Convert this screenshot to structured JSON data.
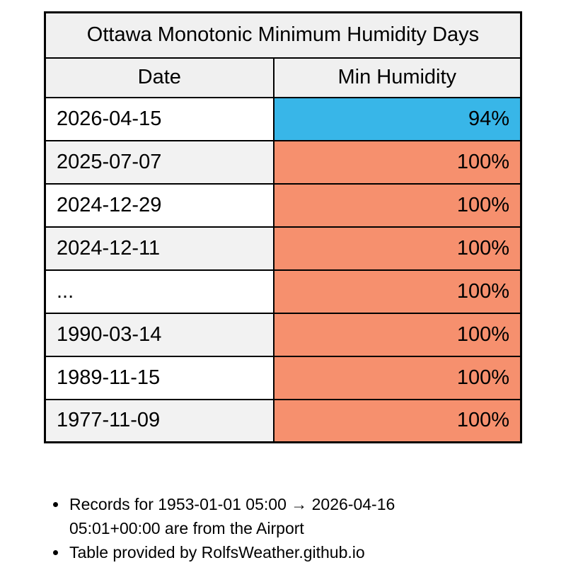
{
  "chart_data": {
    "type": "table",
    "title": "Ottawa Monotonic Minimum Humidity Days",
    "columns": [
      "Date",
      "Min Humidity"
    ],
    "rows": [
      {
        "date": "2026-04-15",
        "min_humidity": "94%",
        "highlight": "blue"
      },
      {
        "date": "2025-07-07",
        "min_humidity": "100%",
        "highlight": "salmon"
      },
      {
        "date": "2024-12-29",
        "min_humidity": "100%",
        "highlight": "salmon"
      },
      {
        "date": "2024-12-11",
        "min_humidity": "100%",
        "highlight": "salmon"
      },
      {
        "date": "...",
        "min_humidity": "100%",
        "highlight": "salmon"
      },
      {
        "date": "1990-03-14",
        "min_humidity": "100%",
        "highlight": "salmon"
      },
      {
        "date": "1989-11-15",
        "min_humidity": "100%",
        "highlight": "salmon"
      },
      {
        "date": "1977-11-09",
        "min_humidity": "100%",
        "highlight": "salmon"
      }
    ],
    "layout_hints": {
      "striped_date_column": true,
      "humidity_column_fully_colored": true
    }
  },
  "footnotes": [
    "Records for 1953-01-01 05:00 → 2026-04-16 05:01+00:00 are from the Airport",
    "Table provided by RolfsWeather.github.io"
  ],
  "colors": {
    "blue": "#38b6e8",
    "salmon": "#f6906e",
    "header_bg": "#f0f0f0",
    "row_alt_bg": "#f2f2f2",
    "border": "#000000",
    "background": "#ffffff"
  }
}
